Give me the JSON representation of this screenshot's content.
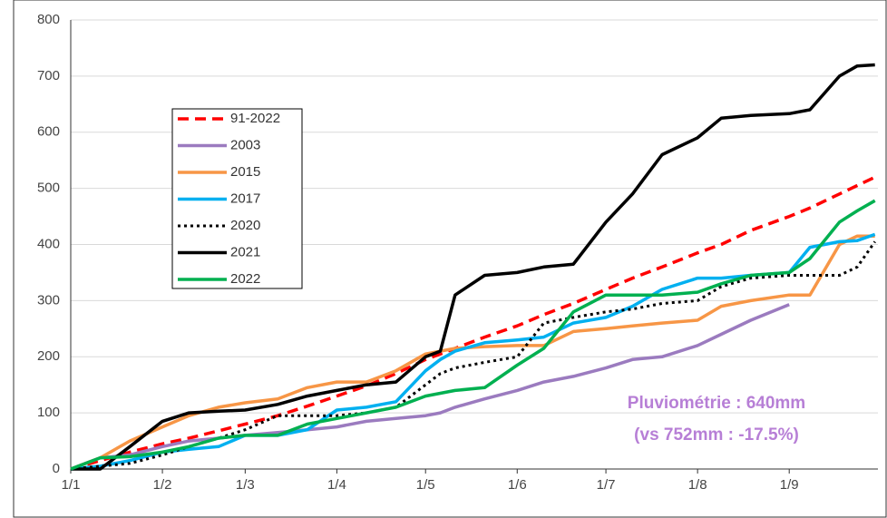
{
  "chart_data": {
    "type": "line",
    "x": [
      0,
      10,
      20,
      31,
      40,
      50,
      59,
      70,
      80,
      90,
      100,
      110,
      120,
      125,
      130,
      140,
      151,
      160,
      170,
      181,
      190,
      200,
      212,
      220,
      230,
      243,
      250,
      260,
      266,
      272
    ],
    "xlim": [
      0,
      273
    ],
    "xticks": [
      {
        "value": 0,
        "label": "1/1"
      },
      {
        "value": 31,
        "label": "1/2"
      },
      {
        "value": 59,
        "label": "1/3"
      },
      {
        "value": 90,
        "label": "1/4"
      },
      {
        "value": 120,
        "label": "1/5"
      },
      {
        "value": 151,
        "label": "1/6"
      },
      {
        "value": 181,
        "label": "1/7"
      },
      {
        "value": 212,
        "label": "1/8"
      },
      {
        "value": 243,
        "label": "1/9"
      }
    ],
    "ylim": [
      0,
      800
    ],
    "yticks": [
      0,
      100,
      200,
      300,
      400,
      500,
      600,
      700,
      800
    ],
    "grid": true,
    "series": [
      {
        "name": "91-2022",
        "color": "#ff0000",
        "dash": "dashed",
        "values": [
          0,
          15,
          30,
          45,
          55,
          68,
          80,
          95,
          112,
          130,
          148,
          170,
          195,
          205,
          215,
          235,
          255,
          275,
          295,
          320,
          340,
          360,
          385,
          400,
          425,
          450,
          465,
          490,
          505,
          520
        ]
      },
      {
        "name": "2003",
        "color": "#9b7bbf",
        "values": [
          0,
          20,
          25,
          40,
          50,
          55,
          60,
          65,
          70,
          75,
          85,
          90,
          95,
          100,
          110,
          125,
          140,
          155,
          165,
          180,
          195,
          200,
          220,
          240,
          265,
          293,
          null,
          null,
          null,
          null
        ]
      },
      {
        "name": "2015",
        "color": "#f79646",
        "values": [
          0,
          20,
          50,
          75,
          95,
          110,
          118,
          125,
          145,
          155,
          155,
          175,
          205,
          210,
          215,
          218,
          220,
          220,
          245,
          250,
          255,
          260,
          265,
          290,
          300,
          310,
          310,
          400,
          415,
          415
        ]
      },
      {
        "name": "2017",
        "color": "#00b0f0",
        "values": [
          0,
          5,
          15,
          30,
          35,
          40,
          60,
          60,
          70,
          105,
          110,
          120,
          175,
          195,
          210,
          225,
          230,
          235,
          260,
          270,
          290,
          320,
          340,
          340,
          345,
          350,
          395,
          405,
          407,
          418
        ]
      },
      {
        "name": "2020",
        "color": "#000000",
        "dash": "dotted",
        "values": [
          0,
          5,
          10,
          25,
          40,
          55,
          70,
          95,
          95,
          95,
          100,
          110,
          150,
          170,
          180,
          190,
          200,
          260,
          270,
          280,
          285,
          295,
          300,
          325,
          340,
          345,
          345,
          345,
          360,
          405
        ]
      },
      {
        "name": "2021",
        "color": "#000000",
        "values": [
          0,
          0,
          40,
          85,
          100,
          103,
          105,
          115,
          130,
          140,
          150,
          155,
          200,
          210,
          310,
          345,
          350,
          360,
          365,
          440,
          490,
          560,
          590,
          625,
          630,
          633,
          640,
          700,
          718,
          720
        ]
      },
      {
        "name": "2022",
        "color": "#00b050",
        "values": [
          0,
          20,
          22,
          30,
          40,
          55,
          60,
          60,
          80,
          90,
          100,
          110,
          130,
          135,
          140,
          145,
          185,
          215,
          280,
          310,
          310,
          310,
          315,
          330,
          345,
          350,
          375,
          440,
          460,
          478
        ]
      }
    ],
    "annotations": [
      "Pluviométrie : 640mm",
      "(vs 752mm : -17.5%)"
    ]
  }
}
